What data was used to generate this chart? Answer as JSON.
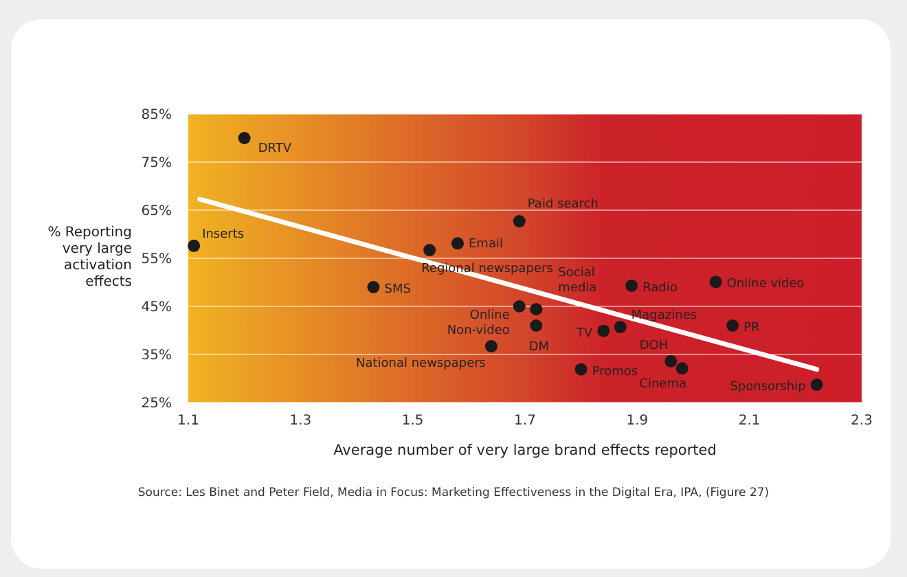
{
  "chart_data": {
    "type": "scatter",
    "xlabel": "Average number of very large brand effects reported",
    "ylabel": "% Reporting very large activation effects",
    "xlim": [
      1.1,
      2.3
    ],
    "xticks": [
      1.1,
      1.3,
      1.5,
      1.7,
      1.9,
      2.1,
      2.3
    ],
    "ylim": [
      25,
      85
    ],
    "yticks": [
      {
        "value": 25,
        "label": "25%"
      },
      {
        "value": 35,
        "label": "35%"
      },
      {
        "value": 45,
        "label": "45%"
      },
      {
        "value": 55,
        "label": "55%"
      },
      {
        "value": 65,
        "label": "65%"
      },
      {
        "value": 75,
        "label": "75%"
      },
      {
        "value": 85,
        "label": "85%"
      }
    ],
    "grid": "y",
    "series": [
      {
        "marker": "circle",
        "color": "#1a1a1a",
        "x": [
          1.2,
          1.11,
          1.43,
          1.53,
          1.58,
          1.69,
          1.69,
          1.72,
          1.72,
          1.64,
          1.84,
          1.87,
          1.89,
          2.04,
          2.07,
          1.96,
          1.98,
          1.8,
          2.22
        ],
        "values": [
          80,
          57.6,
          49,
          56.7,
          58.1,
          62.7,
          45,
          44.4,
          41,
          36.7,
          39.9,
          40.7,
          49.3,
          50.1,
          41,
          33.6,
          32.1,
          31.9,
          28.7
        ]
      },
      {
        "type": "line",
        "marker": "none",
        "color": "#ffffff",
        "x": [
          1.12,
          2.22
        ],
        "values": [
          67.3,
          31.9
        ]
      }
    ],
    "annotations": [
      {
        "text": "DRTV",
        "x": 1.2,
        "y": 80
      },
      {
        "text": "Inserts",
        "x": 1.11,
        "y": 57.6
      },
      {
        "text": "SMS",
        "x": 1.43,
        "y": 49
      },
      {
        "text": "Regional newspapers",
        "x": 1.53,
        "y": 56.7
      },
      {
        "text": "Email",
        "x": 1.58,
        "y": 58.1
      },
      {
        "text": "Paid search",
        "x": 1.69,
        "y": 62.7
      },
      {
        "text": "Online Non-video",
        "x": 1.69,
        "y": 45
      },
      {
        "text": "Social media",
        "x": 1.72,
        "y": 44.4
      },
      {
        "text": "DM",
        "x": 1.72,
        "y": 41
      },
      {
        "text": "National newspapers",
        "x": 1.64,
        "y": 36.7
      },
      {
        "text": "TV",
        "x": 1.84,
        "y": 39.9
      },
      {
        "text": "Magazines",
        "x": 1.87,
        "y": 40.7
      },
      {
        "text": "Radio",
        "x": 1.89,
        "y": 49.3
      },
      {
        "text": "Online video",
        "x": 2.04,
        "y": 50.1
      },
      {
        "text": "PR",
        "x": 2.07,
        "y": 41
      },
      {
        "text": "DOH",
        "x": 1.96,
        "y": 33.6
      },
      {
        "text": "Cinema",
        "x": 1.98,
        "y": 32.1
      },
      {
        "text": "Promos",
        "x": 1.8,
        "y": 31.9
      },
      {
        "text": "Sponsorship",
        "x": 2.22,
        "y": 28.7
      },
      "Source: Les Binet and Peter Field, Media in Focus: Marketing Effectiveness in the Digital Era, IPA, (Figure 27)"
    ]
  }
}
